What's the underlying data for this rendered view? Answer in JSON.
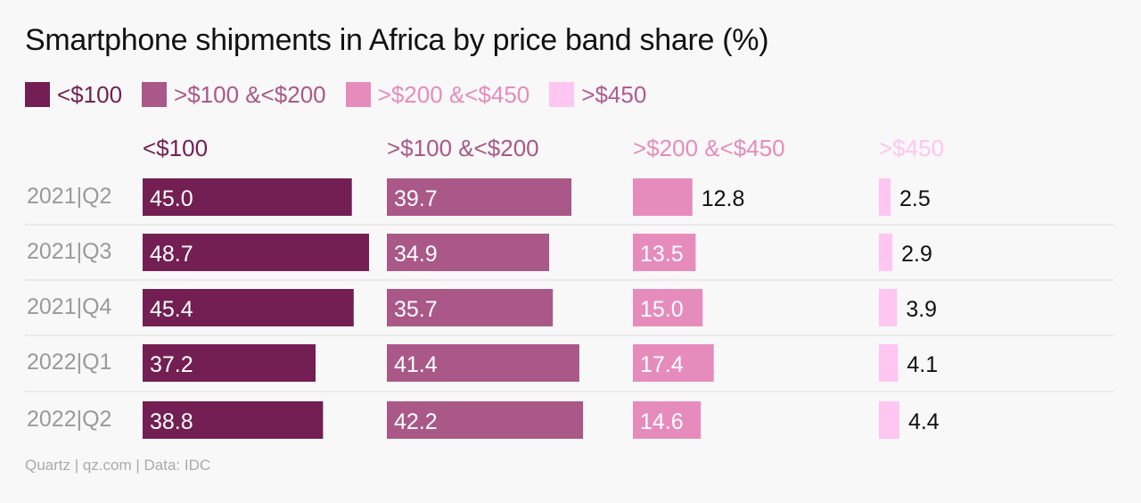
{
  "title": "Smartphone shipments in Africa by price band share (%)",
  "source": "Quartz | qz.com | Data: IDC",
  "chart_data": {
    "type": "bar",
    "orientation": "horizontal",
    "layout": "small-multiples",
    "categories": [
      "2021|Q2",
      "2021|Q3",
      "2021|Q4",
      "2022|Q1",
      "2022|Q2"
    ],
    "series": [
      {
        "name": "<$100",
        "color": "#731f53",
        "values": [
          45.0,
          48.7,
          45.4,
          37.2,
          38.8
        ]
      },
      {
        "name": ">$100 &<$200",
        "color": "#aa5888",
        "values": [
          39.7,
          34.9,
          35.7,
          41.4,
          42.2
        ]
      },
      {
        "name": ">$200 &<$450",
        "color": "#e68cbd",
        "values": [
          12.8,
          13.5,
          15.0,
          17.4,
          14.6
        ]
      },
      {
        "name": ">$450",
        "color": "#ffc6f1",
        "values": [
          2.5,
          2.9,
          3.9,
          4.1,
          4.4
        ]
      }
    ],
    "legend": "top-left",
    "grid": false
  }
}
